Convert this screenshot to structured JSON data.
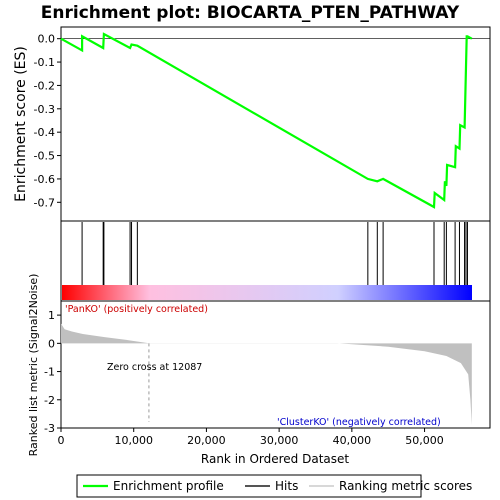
{
  "chart_data": {
    "type": "line",
    "title": "Enrichment plot: BIOCARTA_PTEN_PATHWAY",
    "top_panel": {
      "ylabel": "Enrichment score (ES)",
      "ylim": [
        -0.78,
        0.05
      ],
      "yticks": [
        "0.0",
        "-0.1",
        "-0.2",
        "-0.3",
        "-0.4",
        "-0.5",
        "-0.6",
        "-0.7"
      ],
      "ytick_values": [
        0.0,
        -0.1,
        -0.2,
        -0.3,
        -0.4,
        -0.5,
        -0.6,
        -0.7
      ],
      "series": [
        {
          "name": "Enrichment profile",
          "color": "#00ff00",
          "x": [
            0,
            2900,
            2900,
            5800,
            5900,
            9500,
            9700,
            10500,
            42200,
            43500,
            44300,
            51300,
            51400,
            52700,
            52800,
            53000,
            53100,
            54200,
            54300,
            54800,
            54900,
            55500,
            55600,
            55700,
            55800,
            55900,
            56500
          ],
          "y": [
            0.0,
            -0.05,
            0.01,
            -0.04,
            0.02,
            -0.04,
            -0.025,
            -0.03,
            -0.6,
            -0.61,
            -0.6,
            -0.72,
            -0.66,
            -0.69,
            -0.61,
            -0.63,
            -0.54,
            -0.55,
            -0.46,
            -0.47,
            -0.37,
            -0.38,
            -0.25,
            -0.12,
            0.01,
            0.01,
            0.0
          ]
        }
      ]
    },
    "hits_panel": {
      "hit_positions": [
        2900,
        5800,
        5900,
        9500,
        9700,
        10500,
        42200,
        43500,
        44300,
        51300,
        52700,
        53000,
        54200,
        54800,
        55500,
        55700,
        55900
      ],
      "gradient_colors": [
        "#ff0000",
        "#ffc0e0",
        "#d0d0ff",
        "#0000ff"
      ],
      "gradient_stops": [
        0,
        12087,
        38000,
        56500
      ]
    },
    "bottom_panel": {
      "ylabel": "Ranked list metric (Signal2Noise)",
      "ylim": [
        -3,
        1.5
      ],
      "yticks": [
        "1",
        "0",
        "-1",
        "-2",
        "-3"
      ],
      "ytick_values": [
        1,
        0,
        -1,
        -2,
        -3
      ],
      "metric_curve_x": [
        0,
        500,
        1500,
        3000,
        6000,
        9000,
        12087,
        20000,
        30000,
        38000,
        45000,
        50000,
        53000,
        55000,
        56000,
        56300,
        56500
      ],
      "metric_curve_y": [
        0.7,
        0.5,
        0.42,
        0.33,
        0.22,
        0.12,
        0.0,
        0.0,
        0.0,
        0.0,
        -0.12,
        -0.28,
        -0.45,
        -0.7,
        -1.1,
        -2.0,
        -2.9
      ],
      "zero_cross": 12087,
      "zero_cross_label": "Zero cross at 12087",
      "pos_label": "'PanKO' (positively correlated)",
      "neg_label": "'ClusterKO' (negatively correlated)"
    },
    "xlabel": "Rank in Ordered Dataset",
    "xlim": [
      0,
      59000
    ],
    "xticks": [
      "0",
      "10,000",
      "20,000",
      "30,000",
      "40,000",
      "50,000"
    ],
    "xtick_values": [
      0,
      10000,
      20000,
      30000,
      40000,
      50000
    ],
    "legend": {
      "placement": "bottom",
      "entries": [
        "Enrichment profile",
        "Hits",
        "Ranking metric scores"
      ]
    },
    "colors": {
      "profile": "#00ff00",
      "hits": "#000000",
      "metric": "#c0c0c0",
      "pos_text": "#cc0000",
      "neg_text": "#0000cc"
    }
  }
}
